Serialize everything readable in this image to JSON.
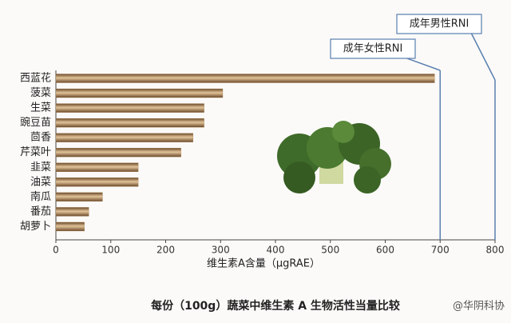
{
  "chart_data": {
    "type": "bar",
    "orientation": "horizontal",
    "categories": [
      "西蓝花",
      "菠菜",
      "生菜",
      "豌豆苗",
      "茴香",
      "芹菜叶",
      "韭菜",
      "油菜",
      "南瓜",
      "番茄",
      "胡萝卜"
    ],
    "values": [
      690,
      304,
      270,
      270,
      250,
      228,
      150,
      150,
      85,
      60,
      52
    ],
    "color": "#a57a4a",
    "xlim": [
      0,
      800
    ],
    "xticks": [
      0,
      100,
      200,
      300,
      400,
      500,
      600,
      700,
      800
    ],
    "xlabel": "维生素A含量（μgRAE）",
    "reference_lines": [
      {
        "label": "成年女性RNI",
        "value": 700
      },
      {
        "label": "成年男性RNI",
        "value": 800
      }
    ],
    "caption": "每份（100g）蔬菜中维生素 A 生物活性当量比较",
    "watermark": "@华阴科协"
  }
}
